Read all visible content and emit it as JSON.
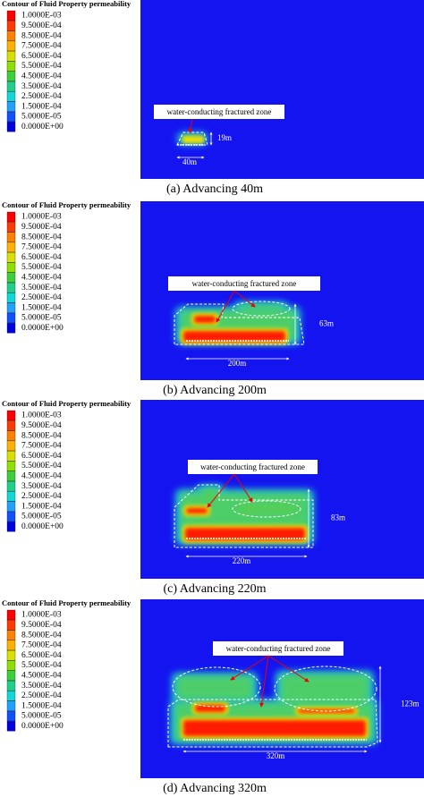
{
  "legend": {
    "title": "Contour of Fluid Property permeability",
    "labels": [
      "1.0000E-03",
      "9.5000E-04",
      "8.5000E-04",
      "7.5000E-04",
      "6.5000E-04",
      "5.5000E-04",
      "4.5000E-04",
      "3.5000E-04",
      "2.5000E-04",
      "1.5000E-04",
      "5.0000E-05",
      "0.0000E+00"
    ]
  },
  "panels": [
    {
      "annotation": "water-conducting fractured zone",
      "height_label": "19m",
      "width_label": "40m",
      "caption": "(a) Advancing 40m"
    },
    {
      "annotation": "water-conducting fractured zone",
      "height_label": "63m",
      "width_label": "200m",
      "caption": "(b) Advancing 200m"
    },
    {
      "annotation": "water-conducting fractured zone",
      "height_label": "83m",
      "width_label": "220m",
      "caption": "(c) Advancing 220m"
    },
    {
      "annotation": "water-conducting fractured zone",
      "height_label": "123m",
      "width_label": "320m",
      "caption": "(d) Advancing 320m"
    }
  ]
}
